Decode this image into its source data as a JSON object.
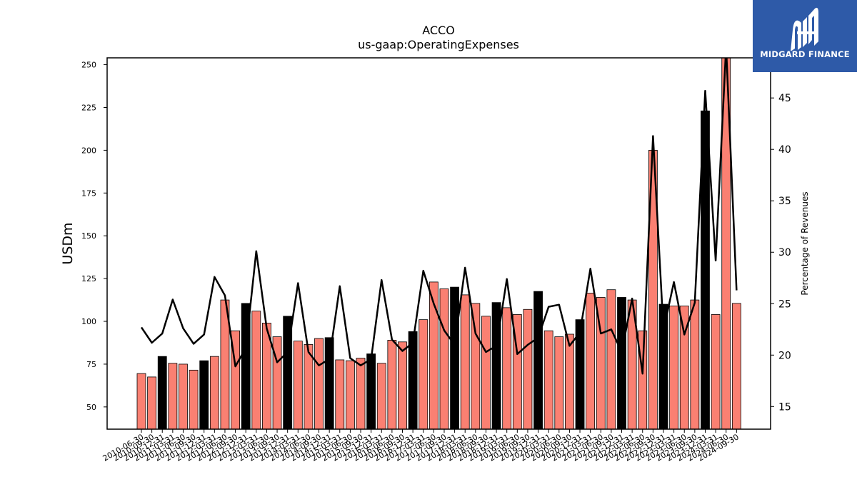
{
  "chart_data": {
    "type": "bar",
    "title": "ACCO",
    "subtitle": "us-gaap:OperatingExpenses",
    "ylabel": "USDm",
    "y2label": "Percentage of Revenues",
    "ylim": [
      37,
      254
    ],
    "y2lim": [
      12.8,
      48.9
    ],
    "yticks": [
      50,
      75,
      100,
      125,
      150,
      175,
      200,
      225,
      250
    ],
    "y2ticks": [
      15,
      20,
      25,
      30,
      35,
      40,
      45
    ],
    "categories": [
      "2010-06-30",
      "2010-09-30",
      "2010-12-31",
      "2011-03-31",
      "2011-06-30",
      "2011-09-30",
      "2011-12-31",
      "2012-03-31",
      "2012-06-30",
      "2012-09-30",
      "2012-12-31",
      "2013-03-31",
      "2013-06-30",
      "2013-09-30",
      "2013-12-31",
      "2014-03-31",
      "2014-06-30",
      "2014-09-30",
      "2014-12-31",
      "2015-03-31",
      "2015-06-30",
      "2015-09-30",
      "2015-12-31",
      "2016-03-31",
      "2016-06-30",
      "2016-09-30",
      "2016-12-31",
      "2017-03-31",
      "2017-06-30",
      "2017-09-30",
      "2017-12-31",
      "2018-03-31",
      "2018-06-30",
      "2018-09-30",
      "2018-12-31",
      "2019-03-31",
      "2019-06-30",
      "2019-09-30",
      "2019-12-31",
      "2020-03-31",
      "2020-06-30",
      "2020-09-30",
      "2020-12-31",
      "2021-03-31",
      "2021-06-30",
      "2021-09-30",
      "2021-12-31",
      "2022-03-31",
      "2022-06-30",
      "2022-09-30",
      "2022-12-31",
      "2023-03-31",
      "2023-06-30",
      "2023-09-30",
      "2023-12-31",
      "2024-03-31",
      "2024-06-30",
      "2024-09-30"
    ],
    "series": [
      {
        "values": [
          69.5,
          67.5,
          79.5,
          75.5,
          75,
          71.5,
          77,
          79.5,
          112.5,
          94.5,
          110.5,
          106,
          99,
          91,
          103,
          88.5,
          86.5,
          90,
          90.5,
          77.5,
          77,
          78.5,
          81,
          75.5,
          89,
          88,
          94,
          101,
          123,
          119,
          120,
          115.5,
          110.5,
          103,
          111,
          108,
          104,
          107,
          117.5,
          94.5,
          91,
          92.5,
          101,
          116.5,
          114,
          118.5,
          114,
          112.5,
          94.5,
          200,
          110,
          109,
          109,
          112.5,
          223,
          104,
          255,
          110.5
        ],
        "highlight": [
          false,
          false,
          true,
          false,
          false,
          false,
          true,
          false,
          false,
          false,
          true,
          false,
          false,
          false,
          true,
          false,
          false,
          false,
          true,
          false,
          false,
          false,
          true,
          false,
          false,
          false,
          true,
          false,
          false,
          false,
          true,
          false,
          false,
          false,
          true,
          false,
          false,
          false,
          true,
          false,
          false,
          false,
          true,
          false,
          false,
          false,
          true,
          false,
          false,
          false,
          true,
          false,
          false,
          false,
          true,
          false,
          false,
          false
        ],
        "bar_color": "#fa8072",
        "highlight_color": "#000000"
      },
      {
        "axis": "right",
        "type": "line",
        "line_color": "#000000",
        "values": [
          22.7,
          21.2,
          22.1,
          25.4,
          22.6,
          21.1,
          22.0,
          27.6,
          25.8,
          18.9,
          20.7,
          30.1,
          22.6,
          19.3,
          20.3,
          27.0,
          20.3,
          19.0,
          19.6,
          26.7,
          19.7,
          19.0,
          19.6,
          27.3,
          21.5,
          20.4,
          21.2,
          28.2,
          25.0,
          22.4,
          21.0,
          28.5,
          22.1,
          20.3,
          20.9,
          27.4,
          20.1,
          21.0,
          21.7,
          24.7,
          24.9,
          20.9,
          22.2,
          28.4,
          22.1,
          22.5,
          20.3,
          25.5,
          18.2,
          41.3,
          22.4,
          27.1,
          22.0,
          25.1,
          45.7,
          29.2,
          50.0,
          26.3
        ]
      }
    ],
    "logo": {
      "text": "MIDGARD FINANCE",
      "background": "#2e5aa8"
    }
  }
}
